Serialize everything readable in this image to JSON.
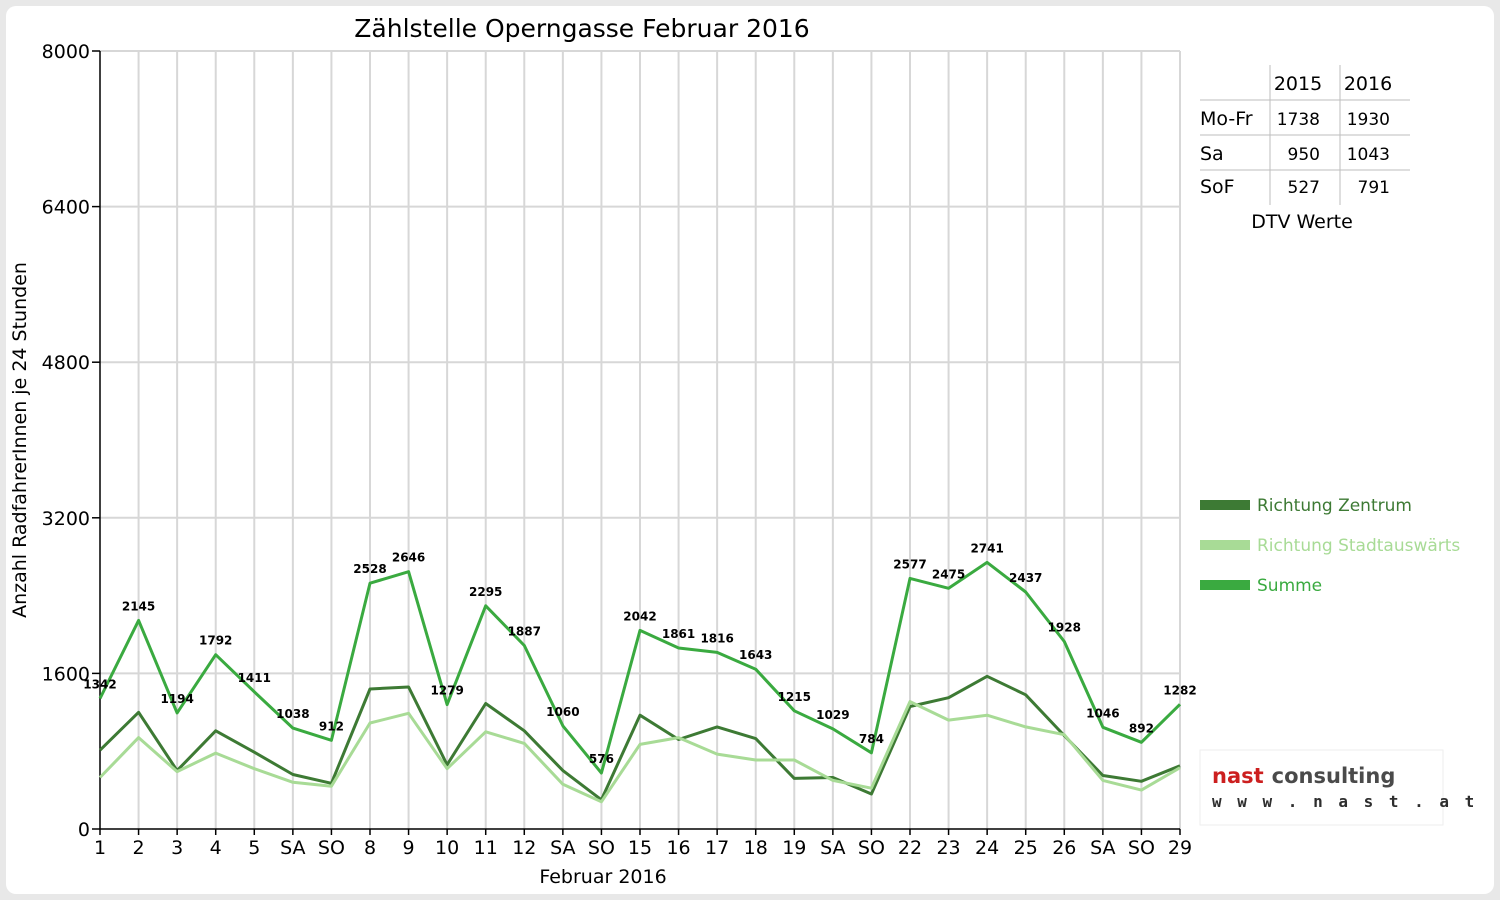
{
  "chart_data": {
    "type": "line",
    "title": "Zählstelle Operngasse Februar 2016",
    "xlabel": "Februar 2016",
    "ylabel": "Anzahl RadfahrerInnen je 24 Stunden",
    "ylim": [
      0,
      8000
    ],
    "yticks": [
      "0",
      "1600",
      "3200",
      "4800",
      "6400",
      "8000"
    ],
    "grid": true,
    "legend_position": "right",
    "categories": [
      "1",
      "2",
      "3",
      "4",
      "5",
      "SA",
      "SO",
      "8",
      "9",
      "10",
      "11",
      "12",
      "SA",
      "SO",
      "15",
      "16",
      "17",
      "18",
      "19",
      "SA",
      "SO",
      "22",
      "23",
      "24",
      "25",
      "26",
      "SA",
      "SO",
      "29"
    ],
    "weekend_color": "#ff0000",
    "weekend_labels": [
      "SO"
    ],
    "series": [
      {
        "name": "Richtung Zentrum",
        "color": "#3d7a34",
        "values": [
          810,
          1200,
          600,
          1010,
          790,
          560,
          470,
          1440,
          1460,
          660,
          1290,
          1010,
          600,
          300,
          1170,
          920,
          1050,
          930,
          520,
          530,
          360,
          1260,
          1350,
          1570,
          1380,
          960,
          550,
          490,
          650
        ]
      },
      {
        "name": "Richtung Stadtauswärts",
        "color": "#a8db96",
        "values": [
          530,
          940,
          590,
          780,
          620,
          480,
          440,
          1090,
          1190,
          620,
          1000,
          880,
          460,
          280,
          870,
          940,
          770,
          710,
          710,
          500,
          420,
          1310,
          1120,
          1170,
          1050,
          970,
          500,
          400,
          630
        ]
      },
      {
        "name": "Summe",
        "color": "#3aaa40",
        "values": [
          1342,
          2145,
          1194,
          1792,
          1411,
          1038,
          912,
          2528,
          2646,
          1279,
          2295,
          1887,
          1060,
          576,
          2042,
          1861,
          1816,
          1643,
          1215,
          1029,
          784,
          2577,
          2475,
          2741,
          2437,
          1928,
          1046,
          892,
          1282
        ],
        "labels": [
          "1342",
          "2145",
          "1194",
          "1792",
          "1411",
          "1038",
          "912",
          "2528",
          "2646",
          "1279",
          "2295",
          "1887",
          "1060",
          "576",
          "2042",
          "1861",
          "1816",
          "1643",
          "1215",
          "1029",
          "784",
          "2577",
          "2475",
          "2741",
          "2437",
          "1928",
          "1046",
          "892",
          "1282"
        ]
      }
    ]
  },
  "dtv_table": {
    "columns": [
      "2015",
      "2016"
    ],
    "rows": [
      {
        "label": "Mo-Fr",
        "v2015": "1738",
        "v2016": "1930"
      },
      {
        "label": "Sa",
        "v2015": "950",
        "v2016": "1043"
      },
      {
        "label": "SoF",
        "v2015": "527",
        "v2016": "791"
      }
    ],
    "caption": "DTV Werte"
  },
  "logo": {
    "word1": "nast",
    "word2": "consulting",
    "url": "w w w . n a s t . a t",
    "color1": "#cc1f1f",
    "color2": "#4a4a4a"
  }
}
